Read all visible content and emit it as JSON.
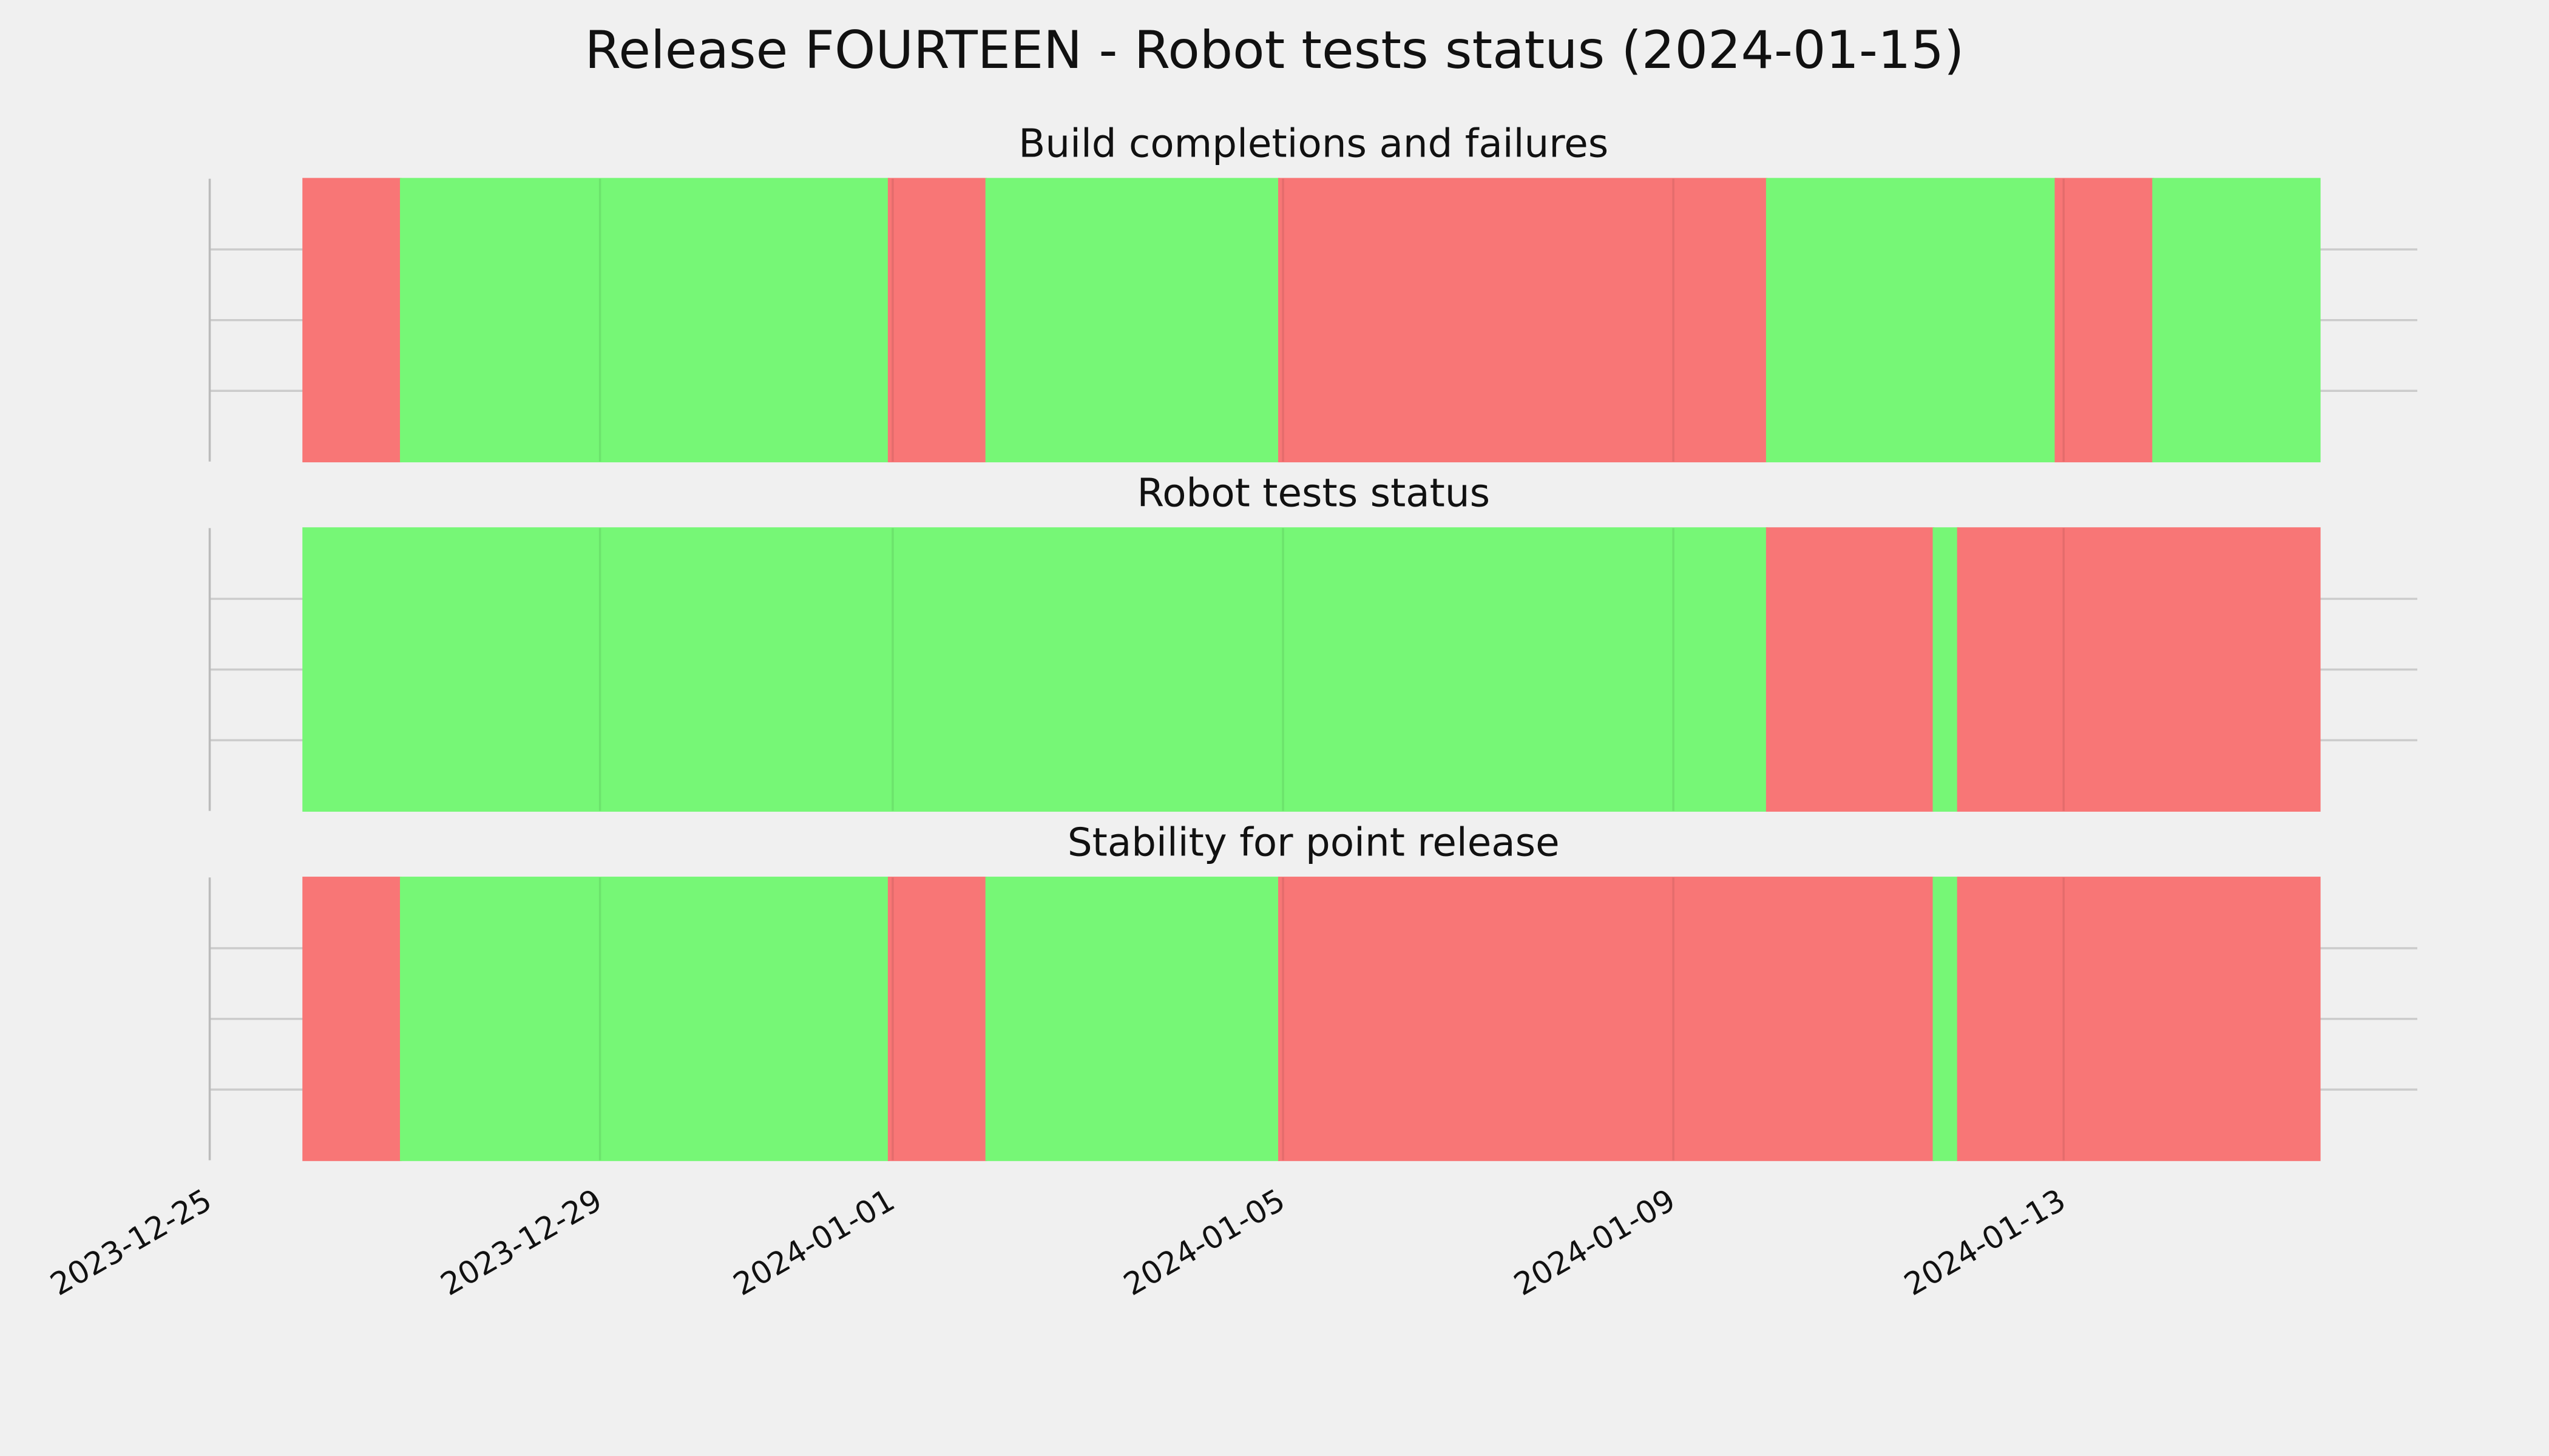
{
  "chart_data": {
    "type": "timeline",
    "title": "Release FOURTEEN - Robot tests status (2024-01-15)",
    "xlim": [
      "2023-12-25",
      "2024-01-16T15:00"
    ],
    "xticks": [
      "2023-12-25",
      "2023-12-29",
      "2024-01-01",
      "2024-01-05",
      "2024-01-09",
      "2024-01-13"
    ],
    "ylim": [
      0,
      1
    ],
    "yticks": [
      0.25,
      0.5,
      0.75
    ],
    "grid": true,
    "panels": [
      {
        "title": "Build completions and failures",
        "segments": [
          {
            "start": "2023-12-25T23:00",
            "end": "2023-12-26T23:00",
            "color": "#f87676"
          },
          {
            "start": "2023-12-26T23:00",
            "end": "2023-12-31T23:00",
            "color": "#76f776"
          },
          {
            "start": "2023-12-31T23:00",
            "end": "2024-01-01T23:00",
            "color": "#f87676"
          },
          {
            "start": "2024-01-01T23:00",
            "end": "2024-01-04T23:00",
            "color": "#76f776"
          },
          {
            "start": "2024-01-04T23:00",
            "end": "2024-01-09T23:00",
            "color": "#f87676"
          },
          {
            "start": "2024-01-09T23:00",
            "end": "2024-01-12T22:00",
            "color": "#76f776"
          },
          {
            "start": "2024-01-12T22:00",
            "end": "2024-01-13T22:00",
            "color": "#f87676"
          },
          {
            "start": "2024-01-13T22:00",
            "end": "2024-01-15T15:00",
            "color": "#76f776"
          }
        ]
      },
      {
        "title": "Robot tests status",
        "segments": [
          {
            "start": "2023-12-25T23:00",
            "end": "2024-01-09T23:00",
            "color": "#76f776"
          },
          {
            "start": "2024-01-09T23:00",
            "end": "2024-01-11T16:00",
            "color": "#f87676"
          },
          {
            "start": "2024-01-11T16:00",
            "end": "2024-01-11T22:00",
            "color": "#76f776"
          },
          {
            "start": "2024-01-11T22:00",
            "end": "2024-01-15T15:00",
            "color": "#f87676"
          }
        ]
      },
      {
        "title": "Stability for point release",
        "segments": [
          {
            "start": "2023-12-25T23:00",
            "end": "2023-12-26T23:00",
            "color": "#f87676"
          },
          {
            "start": "2023-12-26T23:00",
            "end": "2023-12-31T23:00",
            "color": "#76f776"
          },
          {
            "start": "2023-12-31T23:00",
            "end": "2024-01-01T23:00",
            "color": "#f87676"
          },
          {
            "start": "2024-01-01T23:00",
            "end": "2024-01-04T23:00",
            "color": "#76f776"
          },
          {
            "start": "2024-01-04T23:00",
            "end": "2024-01-11T16:00",
            "color": "#f87676"
          },
          {
            "start": "2024-01-11T16:00",
            "end": "2024-01-11T22:00",
            "color": "#76f776"
          },
          {
            "start": "2024-01-11T22:00",
            "end": "2024-01-15T15:00",
            "color": "#f87676"
          }
        ]
      }
    ]
  }
}
